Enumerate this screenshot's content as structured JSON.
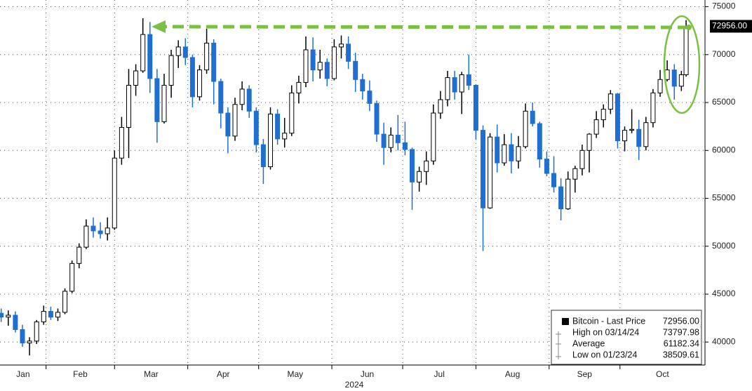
{
  "chart_data": {
    "type": "candlestick",
    "up_color": "#ffffff",
    "down_color": "#1f6fd1",
    "outline_color": "#000000",
    "grid": true,
    "xlim": [
      11.5,
      310
    ],
    "xticks": [
      {
        "value": 0,
        "label": "Jan"
      },
      {
        "value": 31,
        "label": "Feb"
      },
      {
        "value": 60,
        "label": "Mar"
      },
      {
        "value": 91,
        "label": "Apr"
      },
      {
        "value": 121,
        "label": "May"
      },
      {
        "value": 152,
        "label": "Jun"
      },
      {
        "value": 182,
        "label": "Jul"
      },
      {
        "value": 213,
        "label": "Aug"
      },
      {
        "value": 244,
        "label": "Sep"
      },
      {
        "value": 274,
        "label": "Oct"
      }
    ],
    "xlabel": "2024",
    "ylim": [
      37600,
      75700
    ],
    "yticks": [
      40000,
      45000,
      50000,
      55000,
      60000,
      65000,
      70000,
      75000
    ],
    "x": [
      12,
      15,
      18,
      21,
      24,
      27,
      30,
      33,
      36,
      39,
      42,
      45,
      48,
      51,
      54,
      57,
      60,
      63,
      66,
      69,
      72,
      75,
      78,
      81,
      84,
      87,
      90,
      93,
      96,
      99,
      102,
      105,
      108,
      111,
      114,
      117,
      120,
      123,
      126,
      129,
      132,
      135,
      138,
      141,
      144,
      147,
      150,
      153,
      156,
      159,
      162,
      165,
      168,
      171,
      174,
      177,
      180,
      183,
      186,
      189,
      192,
      195,
      198,
      201,
      204,
      207,
      210,
      213,
      216,
      219,
      222,
      225,
      228,
      231,
      234,
      237,
      240,
      243,
      246,
      249,
      252,
      255,
      258,
      261,
      264,
      267,
      270,
      273,
      276,
      279,
      282,
      285,
      288,
      291,
      294,
      297,
      300,
      302
    ],
    "open": [
      43000,
      42600,
      42800,
      41300,
      39900,
      40100,
      42100,
      43200,
      42600,
      43100,
      45300,
      48200,
      49900,
      52100,
      51600,
      51300,
      51900,
      59200,
      62400,
      66800,
      68300,
      72100,
      67500,
      63000,
      66800,
      69900,
      70800,
      69700,
      65600,
      68400,
      71200,
      67200,
      63900,
      61500,
      64800,
      66400,
      64100,
      60600,
      58300,
      63800,
      61200,
      61800,
      66000,
      67100,
      70500,
      68400,
      69200,
      67500,
      70800,
      71100,
      69300,
      67400,
      66200,
      64900,
      61700,
      60300,
      61600,
      60800,
      60100,
      56700,
      57800,
      58900,
      63900,
      65300,
      67600,
      66100,
      67900,
      66800,
      62100,
      54000,
      61400,
      58700,
      60600,
      58900,
      60400,
      64100,
      62800,
      59100,
      57600,
      56200,
      53900,
      57000,
      58100,
      60000,
      61700,
      63200,
      64300,
      65900,
      61000,
      62100,
      62200,
      60400,
      62900,
      66000,
      67400,
      68400,
      66700,
      67900
    ],
    "high": [
      43500,
      43300,
      43200,
      41800,
      40500,
      42300,
      43800,
      43700,
      43500,
      45600,
      48500,
      50300,
      52800,
      53000,
      52500,
      53000,
      60000,
      63500,
      68500,
      69000,
      73798,
      73400,
      68500,
      68000,
      70500,
      71500,
      71700,
      70000,
      68900,
      72700,
      71600,
      67500,
      64500,
      65500,
      67200,
      66800,
      64500,
      61200,
      64500,
      64300,
      63400,
      66800,
      67800,
      71900,
      71800,
      70500,
      69600,
      71600,
      72000,
      71900,
      70200,
      68000,
      67300,
      65200,
      62900,
      62400,
      63700,
      63000,
      60300,
      58300,
      59900,
      64800,
      66200,
      68300,
      68300,
      68200,
      70000,
      66900,
      62600,
      61800,
      62700,
      61700,
      61800,
      61500,
      64900,
      65000,
      63000,
      59900,
      59400,
      57100,
      57800,
      58400,
      60600,
      61800,
      64100,
      64800,
      66300,
      66000,
      62500,
      64300,
      63200,
      63500,
      66400,
      68400,
      69400,
      69000,
      68300,
      73600
    ],
    "low": [
      42100,
      41700,
      41000,
      39500,
      38600,
      39800,
      41800,
      42300,
      42200,
      42900,
      45100,
      47700,
      49700,
      50900,
      50800,
      50600,
      51700,
      58500,
      59200,
      65700,
      68100,
      66000,
      60800,
      62800,
      65500,
      68600,
      68900,
      64500,
      65200,
      68000,
      64800,
      62300,
      59700,
      61000,
      64200,
      63400,
      59800,
      56500,
      58000,
      60600,
      60300,
      61500,
      64900,
      66600,
      67200,
      67500,
      66700,
      67300,
      69600,
      68500,
      66100,
      65300,
      64100,
      60900,
      58500,
      59800,
      60000,
      59500,
      53800,
      55700,
      56400,
      58500,
      63300,
      64600,
      65300,
      63800,
      66300,
      61100,
      49500,
      53900,
      57700,
      58400,
      57600,
      58100,
      60200,
      62500,
      58200,
      57300,
      55600,
      52700,
      53800,
      55600,
      57400,
      57700,
      61300,
      62400,
      63800,
      60200,
      59900,
      61800,
      59000,
      60000,
      62400,
      65600,
      67200,
      65300,
      66200,
      67700
    ],
    "close": [
      42600,
      42800,
      41300,
      39900,
      40100,
      42100,
      43200,
      42600,
      43100,
      45300,
      48200,
      49900,
      52100,
      51600,
      51300,
      51900,
      59200,
      62400,
      66800,
      68300,
      72100,
      67500,
      63000,
      66800,
      69900,
      70800,
      69700,
      65600,
      68400,
      71200,
      67200,
      63900,
      61500,
      64800,
      66400,
      64100,
      60600,
      58300,
      63800,
      61200,
      61800,
      66000,
      67100,
      70500,
      68400,
      69200,
      67500,
      70800,
      71100,
      69300,
      67400,
      66200,
      64900,
      61700,
      60300,
      61600,
      60800,
      60100,
      56700,
      57800,
      58900,
      63900,
      65300,
      67600,
      66100,
      67900,
      66800,
      62100,
      54000,
      61400,
      58700,
      60600,
      58900,
      60400,
      64100,
      62800,
      59100,
      57600,
      56200,
      53900,
      57000,
      58100,
      60000,
      61700,
      63200,
      64300,
      65900,
      61000,
      62100,
      62200,
      60400,
      62900,
      66000,
      67400,
      68400,
      66700,
      67900,
      72956
    ],
    "last_price": {
      "value": 72956,
      "label": "72956.00"
    },
    "legend": {
      "position": "bottom-right",
      "entries": [
        {
          "label": "Bitcoin - Last Price",
          "value": {
            "value": 72956,
            "label": "72956.00"
          }
        },
        {
          "label": "High on 03/14/24",
          "value": 73797.98
        },
        {
          "label": "Average",
          "value": 61182.34
        },
        {
          "label": "Low on 01/23/24",
          "value": 38509.61
        }
      ]
    }
  }
}
